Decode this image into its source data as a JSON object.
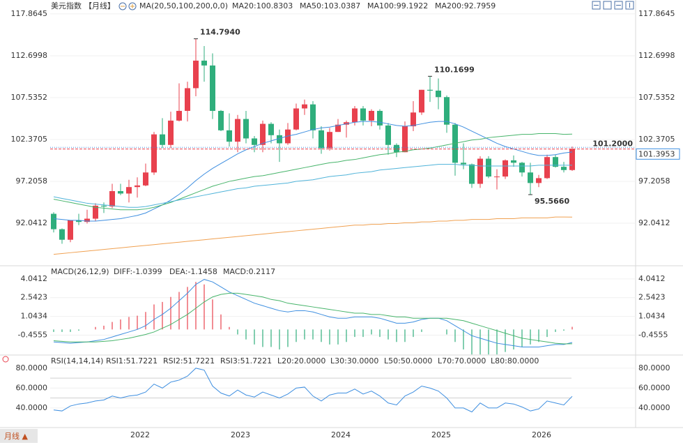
{
  "chart_data": [
    {
      "type": "candlestick",
      "title": "美元指数",
      "period": "【月线】",
      "indicator": "MA(20,50,100,200,0,0)",
      "categories": [
        null,
        null,
        null,
        null,
        null,
        null,
        null,
        null,
        null,
        "2022",
        null,
        null,
        null,
        null,
        null,
        null,
        null,
        null,
        null,
        null,
        null,
        "2023",
        null,
        null,
        null,
        null,
        null,
        null,
        null,
        null,
        null,
        null,
        null,
        "2024",
        null,
        null,
        null,
        null,
        null,
        null,
        null,
        null,
        null,
        null,
        null,
        "2025",
        null,
        null,
        null,
        null,
        null,
        null,
        null,
        null,
        null,
        null,
        null,
        "2026",
        null,
        null,
        null,
        null,
        null
      ],
      "open": [
        93.2,
        91.3,
        90.0,
        92.4,
        92.2,
        92.6,
        94.2,
        94.1,
        96.0,
        95.7,
        96.5,
        96.7,
        98.3,
        103.0,
        101.7,
        104.7,
        105.9,
        108.7,
        112.1,
        111.5,
        105.9,
        103.5,
        102.1,
        104.9,
        102.5,
        101.7,
        104.3,
        102.9,
        101.9,
        103.6,
        106.2,
        106.7,
        103.5,
        101.3,
        103.3,
        104.2,
        104.5,
        106.2,
        104.7,
        105.9,
        104.1,
        101.7,
        100.8,
        104.0,
        105.7,
        108.5,
        108.4,
        107.6,
        104.2,
        99.5,
        99.3,
        96.9,
        100.0,
        97.8,
        97.8,
        99.8,
        99.5,
        98.3,
        97.0,
        97.6,
        100.2,
        99.0,
        98.6
      ],
      "high": [
        93.4,
        91.4,
        92.4,
        93.2,
        93.7,
        94.5,
        94.6,
        96.9,
        96.9,
        97.4,
        97.7,
        99.4,
        103.3,
        105.0,
        105.8,
        109.3,
        109.5,
        114.794,
        113.9,
        113.0,
        106.0,
        105.6,
        105.4,
        105.9,
        102.8,
        104.7,
        104.5,
        103.6,
        104.4,
        106.8,
        107.3,
        107.1,
        104.0,
        103.8,
        104.9,
        104.7,
        106.5,
        106.5,
        106.1,
        106.1,
        104.4,
        101.9,
        104.6,
        107.1,
        108.5,
        110.1699,
        109.9,
        107.8,
        104.4,
        101.9,
        99.4,
        100.3,
        100.3,
        98.7,
        99.9,
        100.4,
        99.6,
        99.5,
        98.0,
        100.5,
        100.5,
        99.6,
        101.5
      ],
      "low": [
        90.9,
        89.5,
        89.7,
        91.8,
        92.0,
        92.3,
        93.3,
        93.9,
        95.5,
        94.6,
        95.2,
        96.6,
        98.0,
        101.3,
        101.3,
        104.6,
        104.6,
        107.7,
        109.5,
        104.9,
        103.4,
        101.5,
        100.8,
        101.9,
        100.8,
        100.8,
        101.9,
        99.6,
        101.7,
        103.5,
        105.4,
        102.5,
        100.6,
        101.0,
        103.3,
        102.6,
        104.1,
        104.1,
        104.0,
        103.6,
        100.5,
        100.2,
        100.8,
        103.4,
        105.4,
        107.0,
        106.1,
        103.2,
        97.9,
        98.7,
        96.4,
        96.4,
        97.6,
        96.2,
        97.5,
        99.0,
        97.8,
        95.566,
        96.5,
        97.5,
        98.9,
        98.3,
        98.5
      ],
      "close": [
        91.3,
        90.0,
        92.4,
        92.2,
        92.6,
        94.2,
        94.1,
        96.0,
        95.7,
        96.5,
        96.7,
        98.3,
        103.0,
        101.7,
        104.7,
        105.9,
        108.7,
        112.1,
        111.5,
        105.9,
        103.5,
        102.1,
        104.9,
        102.5,
        101.7,
        104.3,
        102.9,
        101.9,
        103.6,
        106.2,
        106.7,
        103.5,
        101.3,
        103.3,
        104.2,
        104.5,
        106.2,
        104.7,
        105.9,
        104.1,
        101.7,
        100.8,
        104.0,
        105.7,
        108.5,
        108.4,
        107.6,
        104.2,
        99.5,
        99.3,
        96.9,
        100.0,
        97.8,
        97.8,
        99.8,
        99.5,
        98.3,
        97.0,
        97.6,
        100.2,
        99.0,
        98.6,
        101.2
      ],
      "up_color": "#e8414e",
      "down_color": "#2fae7c",
      "ylim": [
        87.05,
        119.15
      ],
      "yticks": [
        117.8645,
        112.6998,
        107.5352,
        102.3705,
        97.2058,
        92.0412
      ],
      "grid": true,
      "series": [
        {
          "name": "MA20:100.8303",
          "color": "#3d8ee0",
          "values": [
            92.6,
            92.5,
            92.4,
            92.4,
            92.3,
            92.3,
            92.4,
            92.5,
            92.6,
            92.8,
            93.0,
            93.3,
            93.8,
            94.3,
            94.9,
            95.6,
            96.4,
            97.3,
            98.1,
            98.8,
            99.4,
            100.0,
            100.6,
            101.1,
            101.5,
            101.9,
            102.2,
            102.5,
            102.8,
            103.0,
            103.3,
            103.6,
            103.8,
            103.9,
            104.1,
            104.3,
            104.5,
            104.6,
            104.6,
            104.5,
            104.3,
            104.1,
            104.0,
            104.1,
            104.3,
            104.5,
            104.6,
            104.6,
            104.3,
            103.9,
            103.4,
            102.9,
            102.4,
            101.9,
            101.5,
            101.2,
            100.9,
            100.6,
            100.4,
            100.4,
            100.5,
            100.7,
            100.8303
          ]
        },
        {
          "name": "MA50:103.0387",
          "color": "#46b46a",
          "values": [
            95.0,
            94.8,
            94.6,
            94.4,
            94.2,
            94.0,
            93.9,
            93.8,
            93.7,
            93.7,
            93.7,
            93.8,
            94.0,
            94.3,
            94.6,
            95.0,
            95.4,
            95.8,
            96.2,
            96.6,
            96.9,
            97.2,
            97.4,
            97.6,
            97.8,
            97.9,
            98.1,
            98.3,
            98.5,
            98.7,
            98.9,
            99.1,
            99.3,
            99.5,
            99.6,
            99.8,
            99.9,
            100.1,
            100.3,
            100.5,
            100.6,
            100.8,
            100.9,
            101.1,
            101.2,
            101.3,
            101.5,
            101.7,
            101.9,
            102.1,
            102.3,
            102.4,
            102.6,
            102.7,
            102.8,
            102.9,
            103.0,
            103.0,
            103.1,
            103.1,
            103.1,
            103.0,
            103.0387
          ]
        },
        {
          "name": "MA100:99.1922",
          "color": "#4fb3d9",
          "values": [
            95.3,
            95.1,
            94.9,
            94.7,
            94.5,
            94.4,
            94.3,
            94.2,
            94.1,
            94.0,
            94.0,
            94.1,
            94.3,
            94.5,
            94.7,
            94.9,
            95.1,
            95.3,
            95.5,
            95.7,
            95.9,
            96.1,
            96.3,
            96.4,
            96.6,
            96.7,
            96.8,
            96.9,
            97.0,
            97.2,
            97.3,
            97.4,
            97.6,
            97.8,
            97.9,
            98.0,
            98.2,
            98.3,
            98.4,
            98.6,
            98.7,
            98.8,
            98.9,
            99.0,
            99.1,
            99.2,
            99.3,
            99.3,
            99.3,
            99.2,
            99.2,
            99.1,
            99.1,
            99.1,
            99.1,
            99.1,
            99.1,
            99.1,
            99.2,
            99.2,
            99.2,
            99.2,
            99.1922
          ]
        },
        {
          "name": "MA200:92.7959",
          "color": "#f0a050",
          "values": [
            88.2,
            88.3,
            88.4,
            88.5,
            88.6,
            88.7,
            88.8,
            88.9,
            89.0,
            89.1,
            89.2,
            89.3,
            89.4,
            89.5,
            89.6,
            89.7,
            89.8,
            89.9,
            90.0,
            90.1,
            90.2,
            90.3,
            90.4,
            90.5,
            90.6,
            90.7,
            90.8,
            90.9,
            91.0,
            91.1,
            91.2,
            91.3,
            91.4,
            91.5,
            91.6,
            91.7,
            91.8,
            91.8,
            91.9,
            91.9,
            92.0,
            92.0,
            92.1,
            92.1,
            92.2,
            92.2,
            92.3,
            92.3,
            92.4,
            92.4,
            92.5,
            92.5,
            92.5,
            92.6,
            92.6,
            92.6,
            92.7,
            92.7,
            92.7,
            92.7,
            92.8,
            92.8,
            92.7959
          ]
        }
      ],
      "annotations": [
        {
          "value": 114.794,
          "label": "114.7940"
        },
        {
          "value": 110.1699,
          "label": "110.1699"
        },
        {
          "value": 95.566,
          "label": "95.5660"
        }
      ],
      "price_lines": [
        {
          "value": 101.2,
          "label": "101.2000",
          "color": "#e8414e"
        },
        {
          "value": 101.3953,
          "label": "101.3953",
          "color": "#3d8ee0"
        }
      ]
    },
    {
      "type": "macd",
      "title": "MACD(26,12,9)",
      "ylim": [
        -2.1,
        4.87
      ],
      "yticks": [
        4.0412,
        2.5423,
        1.0434,
        -0.4555
      ],
      "series": [
        {
          "name": "DIFF:-1.0399",
          "color": "#3d8ee0",
          "values": [
            -1.0,
            -1.05,
            -1.1,
            -1.05,
            -1.0,
            -0.9,
            -0.8,
            -0.6,
            -0.4,
            -0.2,
            0.0,
            0.3,
            0.8,
            1.2,
            1.7,
            2.3,
            2.9,
            3.6,
            4.0,
            3.8,
            3.4,
            3.0,
            2.7,
            2.4,
            2.1,
            1.9,
            1.7,
            1.5,
            1.4,
            1.5,
            1.5,
            1.4,
            1.2,
            1.0,
            0.9,
            0.9,
            1.0,
            1.0,
            1.0,
            0.9,
            0.7,
            0.5,
            0.5,
            0.6,
            0.8,
            0.9,
            0.9,
            0.7,
            0.3,
            -0.1,
            -0.5,
            -0.7,
            -0.9,
            -1.1,
            -1.2,
            -1.3,
            -1.4,
            -1.4,
            -1.4,
            -1.3,
            -1.2,
            -1.2,
            -1.0399
          ]
        },
        {
          "name": "DEA:-1.1458",
          "color": "#46b46a",
          "values": [
            -0.9,
            -0.95,
            -1.0,
            -1.0,
            -1.0,
            -1.0,
            -0.95,
            -0.9,
            -0.8,
            -0.7,
            -0.55,
            -0.4,
            -0.2,
            0.1,
            0.4,
            0.8,
            1.2,
            1.7,
            2.2,
            2.6,
            2.8,
            2.9,
            2.9,
            2.8,
            2.7,
            2.6,
            2.4,
            2.3,
            2.1,
            2.0,
            1.9,
            1.8,
            1.7,
            1.6,
            1.5,
            1.4,
            1.3,
            1.3,
            1.2,
            1.2,
            1.1,
            1.0,
            1.0,
            0.9,
            0.9,
            0.9,
            0.9,
            0.9,
            0.8,
            0.7,
            0.5,
            0.3,
            0.1,
            -0.1,
            -0.3,
            -0.5,
            -0.7,
            -0.8,
            -0.9,
            -1.0,
            -1.1,
            -1.15,
            -1.1458
          ]
        }
      ],
      "histogram": {
        "name": "MACD:0.2117",
        "up_color": "#e8414e",
        "down_color": "#2fae7c",
        "values": [
          -0.2,
          -0.2,
          -0.2,
          -0.1,
          0,
          0.2,
          0.3,
          0.6,
          0.8,
          1.0,
          1.1,
          1.4,
          2.0,
          2.2,
          2.6,
          3.0,
          3.4,
          3.8,
          3.6,
          2.4,
          1.2,
          0.2,
          -0.4,
          -0.8,
          -1.2,
          -1.4,
          -1.4,
          -1.6,
          -1.4,
          -1.0,
          -0.8,
          -0.8,
          -1.0,
          -1.2,
          -1.2,
          -1.0,
          -0.6,
          -0.6,
          -0.4,
          -0.6,
          -0.8,
          -1.0,
          -1.0,
          -0.6,
          -0.2,
          0,
          0,
          -0.4,
          -1.0,
          -1.6,
          -2.0,
          -2.0,
          -2.0,
          -2.0,
          -1.8,
          -1.6,
          -1.4,
          -1.2,
          -1.0,
          -0.6,
          -0.2,
          -0.1,
          0.2117
        ]
      }
    },
    {
      "type": "line",
      "title": "RSI(14,14,14)",
      "ylim": [
        21,
        89
      ],
      "yticks": [
        {
          "value": 80,
          "label": "80.0000"
        },
        {
          "value": 60,
          "label": "60.0000"
        },
        {
          "value": 40,
          "label": "40.0000"
        }
      ],
      "levels": [
        50,
        70
      ],
      "level_labels": [
        "L20:20.0000",
        "L30:30.0000",
        "L50:50.0000",
        "L70:70.0000",
        "L80:80.0000"
      ],
      "series": [
        {
          "name": "RSI1:51.7221",
          "color": "#3d8ee0",
          "values": [
            38,
            37,
            42,
            44,
            45,
            47,
            48,
            52,
            50,
            52,
            53,
            56,
            64,
            60,
            66,
            68,
            72,
            80,
            78,
            62,
            55,
            52,
            58,
            53,
            51,
            56,
            53,
            50,
            54,
            60,
            61,
            52,
            47,
            53,
            55,
            55,
            59,
            54,
            57,
            52,
            45,
            43,
            52,
            56,
            62,
            60,
            57,
            50,
            40,
            40,
            36,
            45,
            40,
            40,
            45,
            44,
            41,
            37,
            39,
            47,
            45,
            43,
            51.7221
          ]
        },
        {
          "name": "RSI2:51.7221",
          "color": "#46b46a"
        },
        {
          "name": "RSI3:51.7221",
          "color": "#4fb3d9"
        }
      ]
    }
  ],
  "footer": {
    "period_button": "月线 ▲"
  }
}
